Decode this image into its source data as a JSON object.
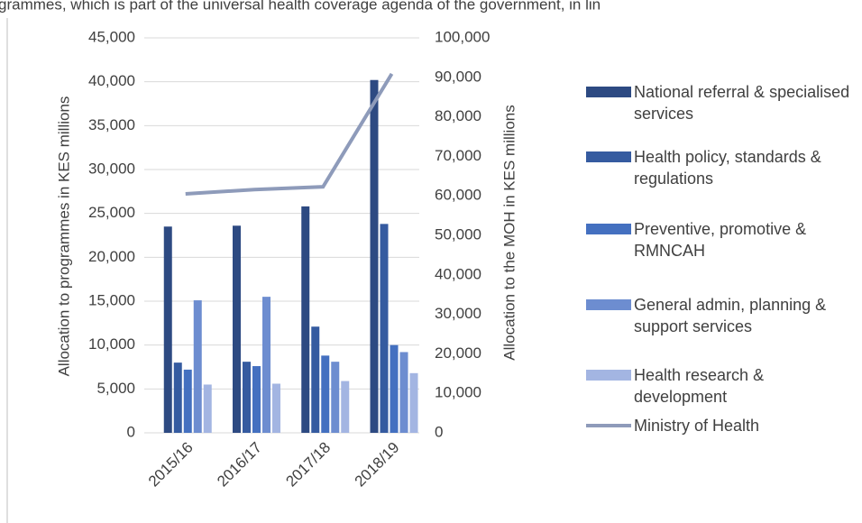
{
  "page_text": "grammes, which is part of the universal health coverage agenda of the government, in lin",
  "chart_data": {
    "type": "bar",
    "categories": [
      "2015/16",
      "2016/17",
      "2017/18",
      "2018/19"
    ],
    "y_label": "Allocation to programmes in KES millions",
    "y2_label": "Allocation to the MOH in KES millions",
    "ylim": [
      0,
      45000
    ],
    "yticks": [
      0,
      {
        "value": 5000,
        "label": "5,000"
      },
      {
        "value": 10000,
        "label": "10,000"
      },
      {
        "value": 15000,
        "label": "15,000"
      },
      {
        "value": 20000,
        "label": "20,000"
      },
      {
        "value": 25000,
        "label": "25,000"
      },
      {
        "value": 30000,
        "label": "30,000"
      },
      {
        "value": 35000,
        "label": "35,000"
      },
      {
        "value": 40000,
        "label": "40,000"
      },
      {
        "value": 45000,
        "label": "45,000"
      }
    ],
    "y2lim": [
      0,
      100000
    ],
    "y2ticks": [
      0,
      {
        "value": 10000,
        "label": "10,000"
      },
      {
        "value": 20000,
        "label": "20,000"
      },
      {
        "value": 30000,
        "label": "30,000"
      },
      {
        "value": 40000,
        "label": "40,000"
      },
      {
        "value": 50000,
        "label": "50,000"
      },
      {
        "value": 60000,
        "label": "60,000"
      },
      {
        "value": 70000,
        "label": "70,000"
      },
      {
        "value": 80000,
        "label": "80,000"
      },
      {
        "value": 90000,
        "label": "90,000"
      },
      {
        "value": 100000,
        "label": "100,000"
      }
    ],
    "grid": true,
    "legend": "right",
    "series": [
      {
        "name": "National referral & specialised services",
        "color": "#2d4a82",
        "values": [
          23500,
          23600,
          25800,
          40200
        ]
      },
      {
        "name": "Health policy, standards & regulations",
        "color": "#355ba0",
        "values": [
          8000,
          8100,
          12100,
          23800
        ]
      },
      {
        "name": "Preventive, promotive & RMNCAH",
        "color": "#4470c0",
        "values": [
          7200,
          7600,
          8800,
          10000
        ]
      },
      {
        "name": "General admin, planning & support services",
        "color": "#6d8dd0",
        "values": [
          15100,
          15500,
          8100,
          9200
        ]
      },
      {
        "name": "Health research & development",
        "color": "#a3b5e2",
        "values": [
          5500,
          5600,
          5900,
          6800
        ]
      },
      {
        "name": "Ministry of Health",
        "type": "line",
        "axis": "y2",
        "color": "#8e9bba",
        "values": [
          60500,
          61600,
          62300,
          90900
        ]
      }
    ]
  }
}
